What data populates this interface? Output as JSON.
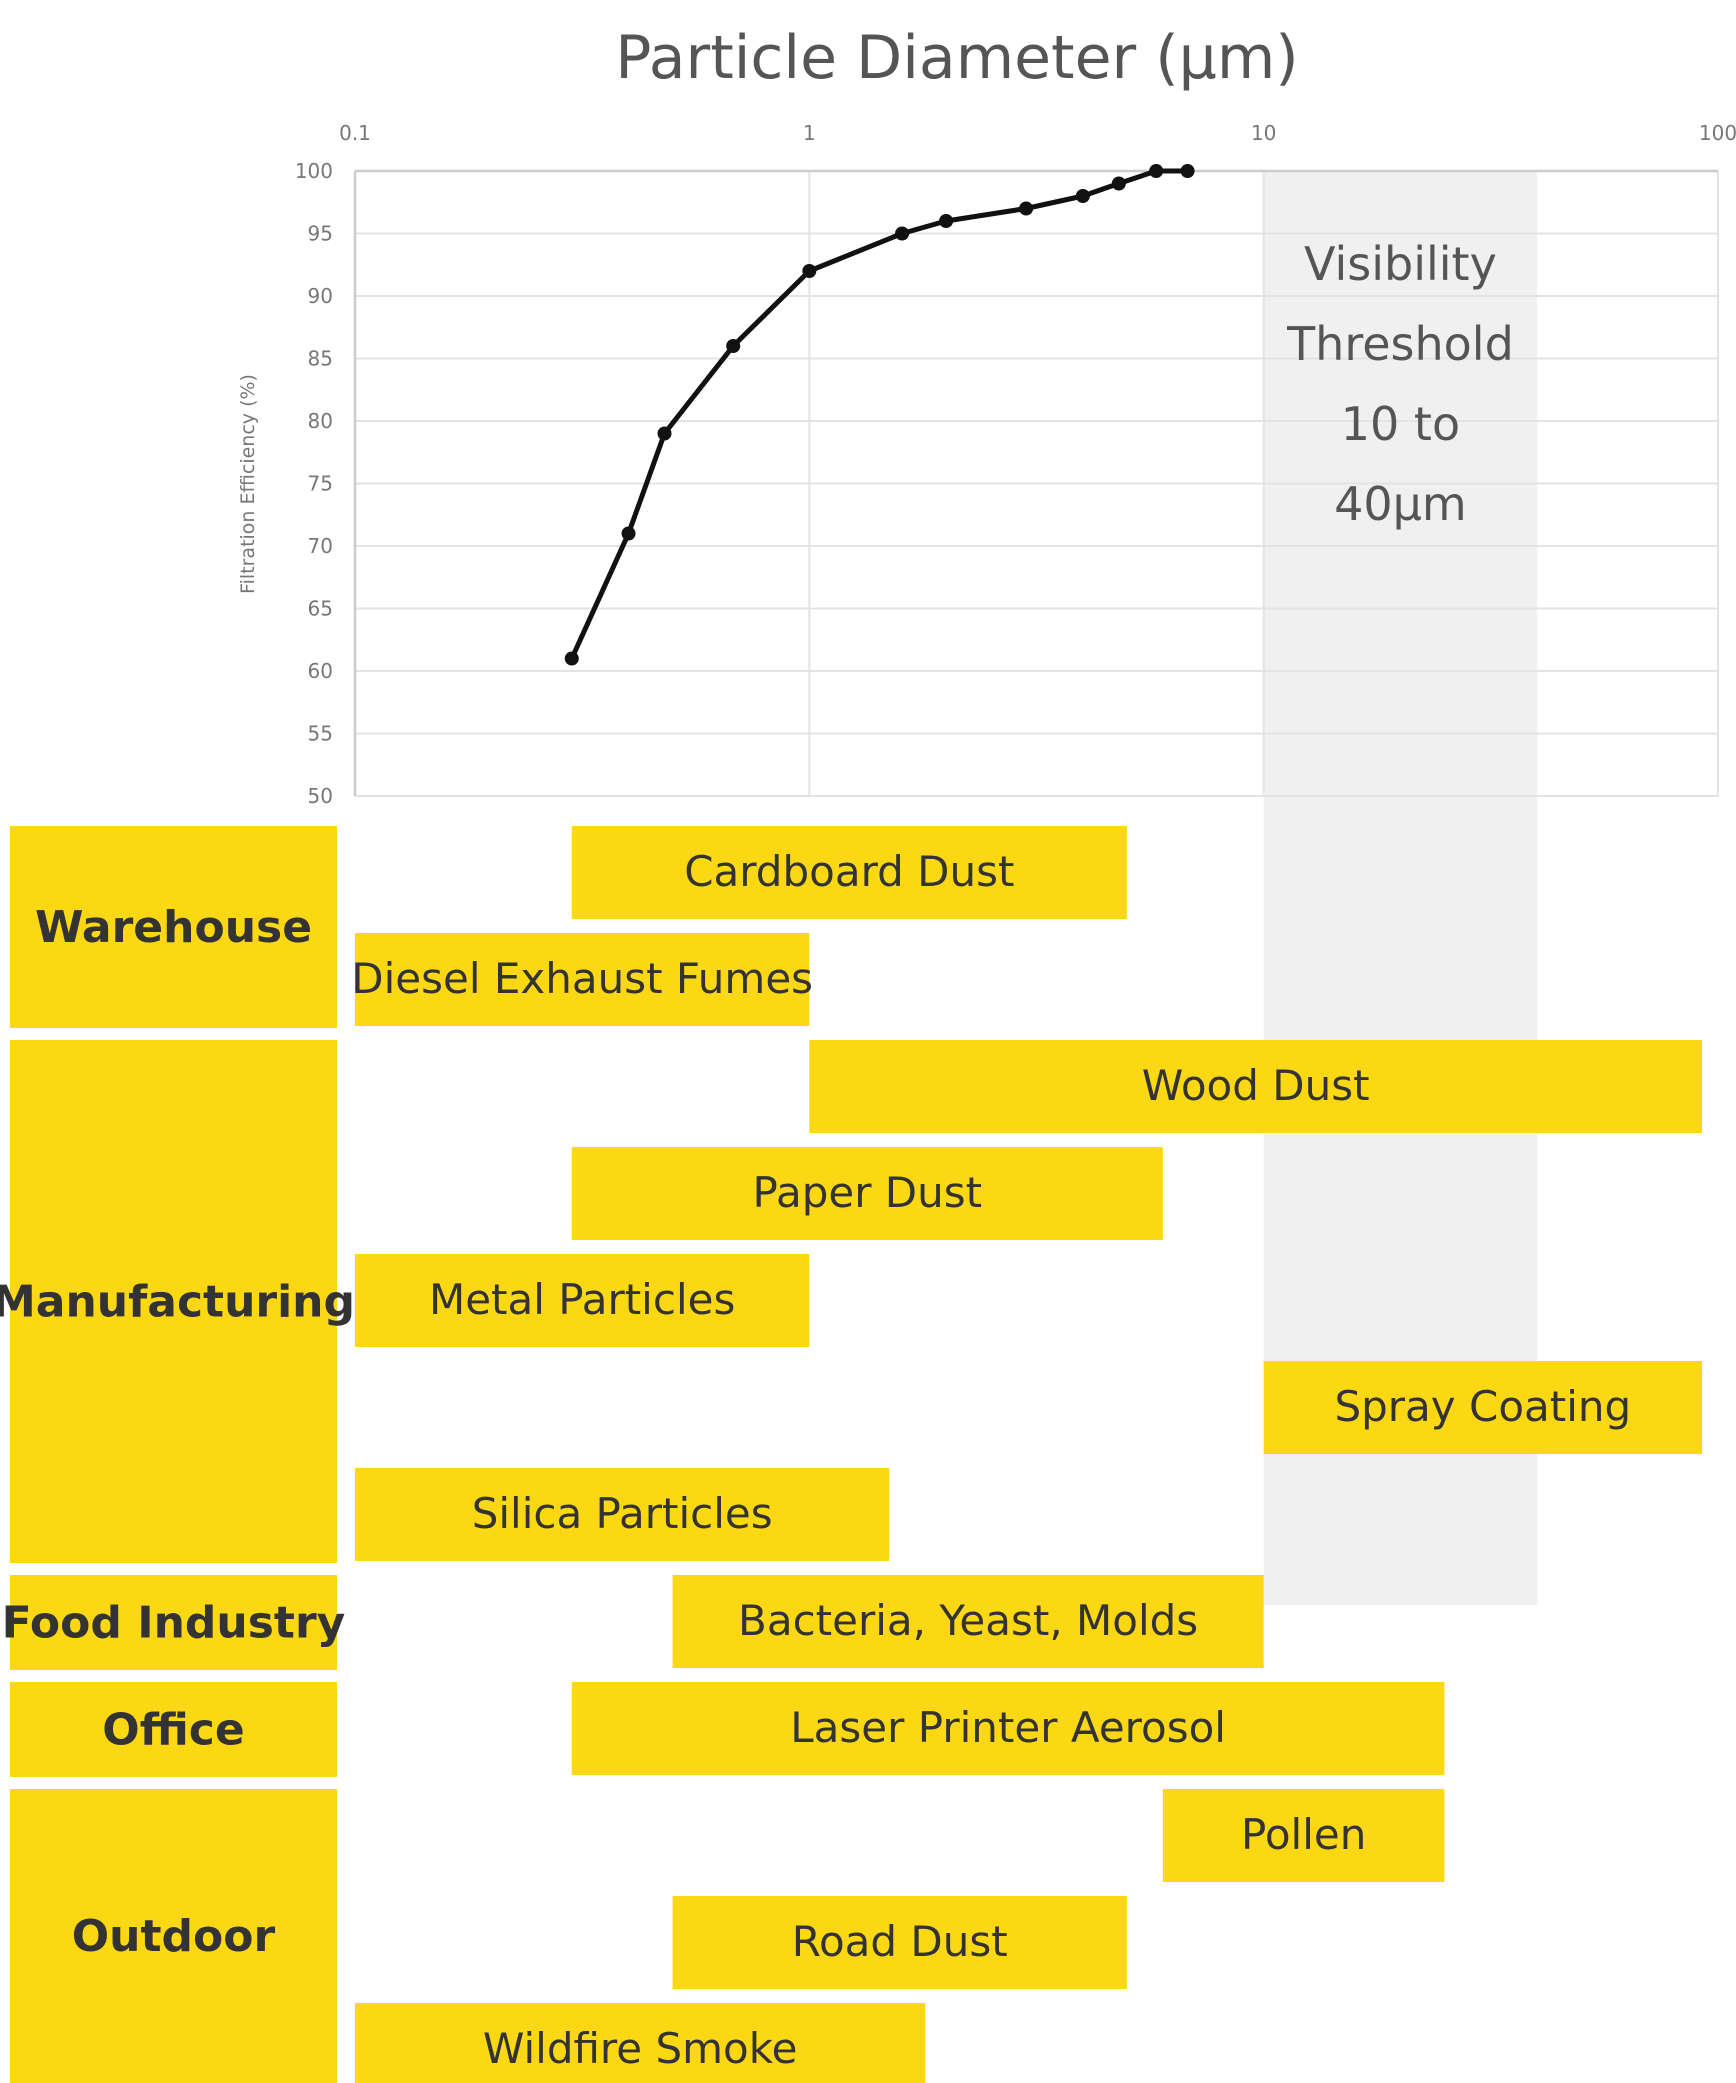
{
  "chart_data": {
    "type": "line",
    "title": "Particle Diameter (μm)",
    "xlabel": "Particle Diameter (μm)",
    "ylabel": "Filtration Efficiency (%)",
    "x_scale": "log",
    "xlim": [
      0.1,
      100
    ],
    "ylim": [
      50,
      100
    ],
    "x_ticks": [
      "0.1",
      "1",
      "10",
      "100"
    ],
    "y_ticks": [
      "100",
      "95",
      "90",
      "85",
      "80",
      "75",
      "70",
      "65",
      "60",
      "55",
      "50"
    ],
    "grid": true,
    "series": [
      {
        "x": [
          0.3,
          0.4,
          0.48,
          0.68,
          1.0,
          1.6,
          2.0,
          3.0,
          4.0,
          4.8,
          5.8,
          6.8
        ],
        "y": [
          61,
          71,
          79,
          86,
          92,
          95,
          96,
          97,
          98,
          99,
          100,
          100
        ]
      }
    ],
    "band": {
      "x_range": [
        10,
        40
      ],
      "lines": [
        "Visibility",
        "Threshold",
        "10 to",
        "40μm"
      ]
    },
    "categories": [
      {
        "label": "Warehouse",
        "rows": 2
      },
      {
        "label": "Manufacturing",
        "rows": 5
      },
      {
        "label": "Food Industry",
        "rows": 1
      },
      {
        "label": "Office",
        "rows": 1
      },
      {
        "label": "Outdoor",
        "rows": 3
      }
    ],
    "ranges": [
      {
        "label": "Cardboard Dust",
        "x_range": [
          0.3,
          5
        ]
      },
      {
        "label": "Diesel Exhaust Fumes",
        "x_range": [
          0.1,
          1
        ]
      },
      {
        "label": "Wood Dust",
        "x_range": [
          1,
          100
        ]
      },
      {
        "label": "Paper Dust",
        "x_range": [
          0.3,
          6
        ]
      },
      {
        "label": "Metal Particles",
        "x_range": [
          0.1,
          1
        ]
      },
      {
        "label": "Spray Coating",
        "x_range": [
          10,
          100
        ]
      },
      {
        "label": "Silica Particles",
        "x_range": [
          0.1,
          1.5
        ]
      },
      {
        "label": "Bacteria, Yeast, Molds",
        "x_range": [
          0.5,
          10
        ]
      },
      {
        "label": "Laser Printer Aerosol",
        "x_range": [
          0.3,
          25
        ]
      },
      {
        "label": "Pollen",
        "x_range": [
          6,
          25
        ]
      },
      {
        "label": "Road Dust",
        "x_range": [
          0.5,
          5
        ]
      },
      {
        "label": "Wildfire Smoke",
        "x_range": [
          0.1,
          1.8
        ]
      }
    ],
    "colors": {
      "bar": "#fcd814",
      "band": "#f0f0f0",
      "line": "#111111"
    }
  }
}
